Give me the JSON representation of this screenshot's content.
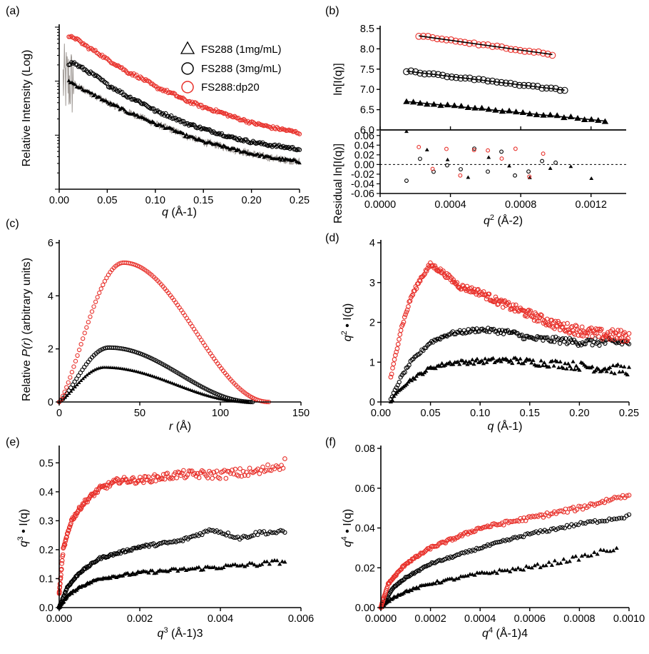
{
  "colors": {
    "red": "#e8302a",
    "black": "#000000",
    "gray": "#a09a96"
  },
  "chart_data": [
    {
      "panel": "(a)",
      "type": "scatter",
      "xlabel_var": "q",
      "xlabel_unit": "(Å-1)",
      "ylabel": "Relative Intensity (Log)",
      "xlim": [
        0,
        0.25
      ],
      "xticks": [
        "0.00",
        "0.05",
        "0.10",
        "0.15",
        "0.20",
        "0.25"
      ],
      "yscale": "log",
      "ylim": [
        0.01,
        10
      ],
      "legend": [
        "FS288 (1mg/mL)",
        "FS288 (3mg/mL)",
        "FS288:dp20"
      ],
      "legend_position": "top-right",
      "series": [
        {
          "name": "FS288 (1mg/mL)",
          "marker": "triangle",
          "color": "#000000",
          "x": [
            0.01,
            0.02,
            0.03,
            0.05,
            0.07,
            0.1,
            0.13,
            0.15,
            0.18,
            0.2,
            0.22,
            0.25
          ],
          "y": [
            1.0,
            0.78,
            0.62,
            0.4,
            0.27,
            0.16,
            0.1,
            0.075,
            0.055,
            0.045,
            0.038,
            0.032
          ]
        },
        {
          "name": "FS288 (3mg/mL)",
          "marker": "circle",
          "color": "#000000",
          "x": [
            0.01,
            0.015,
            0.02,
            0.03,
            0.05,
            0.07,
            0.1,
            0.13,
            0.15,
            0.18,
            0.2,
            0.22,
            0.25
          ],
          "y": [
            2.1,
            2.2,
            1.9,
            1.5,
            0.85,
            0.53,
            0.28,
            0.17,
            0.13,
            0.09,
            0.075,
            0.065,
            0.055
          ]
        },
        {
          "name": "FS288:dp20",
          "marker": "circle",
          "color": "#e8302a",
          "x": [
            0.01,
            0.015,
            0.02,
            0.03,
            0.05,
            0.07,
            0.1,
            0.13,
            0.15,
            0.18,
            0.2,
            0.22,
            0.25
          ],
          "y": [
            6.3,
            6.6,
            5.6,
            4.2,
            2.5,
            1.5,
            0.78,
            0.45,
            0.33,
            0.22,
            0.17,
            0.14,
            0.11
          ]
        }
      ]
    },
    {
      "panel": "(b)",
      "type": "scatter",
      "ylabel_top": "ln[I(q)]",
      "ylabel_bottom": "Residual ln[I(q)]",
      "xlabel_var": "q",
      "xlabel_exp": "2",
      "xlabel_unit": "(Å-2)",
      "xlim": [
        0,
        0.0014
      ],
      "xticks": [
        "0.0000",
        "0.0004",
        "0.0008",
        "0.0012"
      ],
      "ylim_top": [
        6.0,
        8.5
      ],
      "yticks_top": [
        "6.0",
        "6.5",
        "7.0",
        "7.5",
        "8.0",
        "8.5"
      ],
      "ylim_bottom": [
        -0.06,
        0.07
      ],
      "yticks_bottom": [
        "0.06",
        "0.04",
        "0.02",
        "0.00",
        "-0.02",
        "-0.04",
        "-0.06"
      ],
      "series": [
        {
          "name": "FS288 (1mg/mL)",
          "marker": "triangle",
          "color": "#000000",
          "fit": [
            [
              0.00015,
              6.7
            ],
            [
              0.00128,
              6.22
            ]
          ]
        },
        {
          "name": "FS288 (3mg/mL)",
          "marker": "circle",
          "color": "#000000",
          "fit": [
            [
              0.00015,
              7.45
            ],
            [
              0.00105,
              6.98
            ]
          ]
        },
        {
          "name": "FS288:dp20",
          "marker": "circle",
          "color": "#e8302a",
          "fit": [
            [
              0.00022,
              8.32
            ],
            [
              0.00098,
              7.86
            ]
          ]
        }
      ]
    },
    {
      "panel": "(c)",
      "type": "line",
      "xlabel_var": "r",
      "xlabel_unit": "(Å)",
      "ylabel_pre": "Relative ",
      "ylabel_var": "P(r)",
      "ylabel_post": " (arbitrary units)",
      "xlim": [
        0,
        150
      ],
      "xticks": [
        "0",
        "50",
        "100",
        "150"
      ],
      "ylim": [
        0,
        6
      ],
      "yticks": [
        "0",
        "2",
        "4",
        "6"
      ],
      "series": [
        {
          "name": "FS288 (1mg/mL)",
          "marker": "triangle",
          "color": "#000000",
          "peak_r": 28,
          "peak_value": 1.3,
          "dmax": 117
        },
        {
          "name": "FS288 (3mg/mL)",
          "marker": "circle",
          "color": "#000000",
          "peak_r": 31,
          "peak_value": 2.05,
          "dmax": 120
        },
        {
          "name": "FS288:dp20",
          "marker": "circle",
          "color": "#e8302a",
          "peak_r": 40,
          "peak_value": 5.25,
          "dmax": 130
        }
      ]
    },
    {
      "panel": "(d)",
      "type": "scatter",
      "xlabel_var": "q",
      "xlabel_unit": "(Å-1)",
      "ylabel_var": "q",
      "ylabel_exp": "2",
      "ylabel_post": "• I(q)",
      "xlim": [
        0,
        0.25
      ],
      "xticks": [
        "0.00",
        "0.05",
        "0.10",
        "0.15",
        "0.20",
        "0.25"
      ],
      "ylim": [
        0,
        4
      ],
      "yticks": [
        "0",
        "1",
        "2",
        "3",
        "4"
      ],
      "series": [
        {
          "name": "FS288 (1mg/mL)",
          "marker": "triangle",
          "color": "#000000",
          "x": [
            0.01,
            0.02,
            0.03,
            0.05,
            0.07,
            0.1,
            0.13,
            0.15,
            0.18,
            0.2,
            0.22,
            0.25
          ],
          "y": [
            0.0,
            0.35,
            0.55,
            0.85,
            0.98,
            1.02,
            1.05,
            1.0,
            0.95,
            0.9,
            0.85,
            0.8
          ]
        },
        {
          "name": "FS288 (3mg/mL)",
          "marker": "circle",
          "color": "#000000",
          "x": [
            0.01,
            0.02,
            0.03,
            0.05,
            0.07,
            0.1,
            0.13,
            0.15,
            0.18,
            0.2,
            0.22,
            0.25
          ],
          "y": [
            0.05,
            0.6,
            1.0,
            1.5,
            1.72,
            1.82,
            1.75,
            1.6,
            1.55,
            1.5,
            1.5,
            1.5
          ]
        },
        {
          "name": "FS288:dp20",
          "marker": "circle",
          "color": "#e8302a",
          "x": [
            0.01,
            0.015,
            0.02,
            0.03,
            0.04,
            0.05,
            0.06,
            0.08,
            0.1,
            0.12,
            0.15,
            0.18,
            0.2,
            0.22,
            0.25
          ],
          "y": [
            0.6,
            1.2,
            1.8,
            2.6,
            3.1,
            3.45,
            3.3,
            2.9,
            2.75,
            2.5,
            2.2,
            1.9,
            1.8,
            1.7,
            1.65
          ]
        }
      ]
    },
    {
      "panel": "(e)",
      "type": "scatter",
      "xlabel_var": "q",
      "xlabel_exp": "3",
      "xlabel_unit": "(Å-1)3",
      "ylabel_var": "q",
      "ylabel_exp": "3",
      "ylabel_post": "• I(q)",
      "xlim": [
        0,
        0.006
      ],
      "xticks": [
        "0.000",
        "0.002",
        "0.004",
        "0.006"
      ],
      "ylim": [
        0,
        0.55
      ],
      "yticks": [
        "0.0",
        "0.1",
        "0.2",
        "0.3",
        "0.4",
        "0.5"
      ],
      "series": [
        {
          "name": "FS288 (1mg/mL)",
          "marker": "triangle",
          "color": "#000000",
          "x": [
            0.0,
            0.0002,
            0.0005,
            0.001,
            0.002,
            0.003,
            0.004,
            0.005,
            0.0056
          ],
          "y": [
            0.0,
            0.04,
            0.07,
            0.1,
            0.12,
            0.13,
            0.14,
            0.15,
            0.16
          ]
        },
        {
          "name": "FS288 (3mg/mL)",
          "marker": "circle",
          "color": "#000000",
          "x": [
            0.0,
            0.0002,
            0.0005,
            0.001,
            0.002,
            0.003,
            0.0038,
            0.0045,
            0.005,
            0.0056
          ],
          "y": [
            0.0,
            0.07,
            0.12,
            0.17,
            0.21,
            0.23,
            0.27,
            0.24,
            0.26,
            0.26
          ]
        },
        {
          "name": "FS288:dp20",
          "marker": "circle",
          "color": "#e8302a",
          "x": [
            0.0,
            0.0001,
            0.0003,
            0.0006,
            0.001,
            0.0015,
            0.002,
            0.003,
            0.004,
            0.005,
            0.0056
          ],
          "y": [
            0.05,
            0.2,
            0.3,
            0.36,
            0.41,
            0.44,
            0.44,
            0.46,
            0.46,
            0.47,
            0.5
          ]
        }
      ]
    },
    {
      "panel": "(f)",
      "type": "scatter",
      "xlabel_var": "q",
      "xlabel_exp": "4",
      "xlabel_unit": "(Å-1)4",
      "ylabel_var": "q",
      "ylabel_exp": "4",
      "ylabel_post": "• I(q)",
      "xlim": [
        0,
        0.001
      ],
      "xticks": [
        "0.0000",
        "0.0002",
        "0.0004",
        "0.0006",
        "0.0008",
        "0.0010"
      ],
      "ylim": [
        0,
        0.08
      ],
      "yticks": [
        "0.00",
        "0.02",
        "0.04",
        "0.06",
        "0.08"
      ],
      "series": [
        {
          "name": "FS288 (1mg/mL)",
          "marker": "triangle",
          "color": "#000000",
          "x": [
            0.0,
            5e-05,
            0.0001,
            0.0002,
            0.0004,
            0.0006,
            0.0008,
            0.00095
          ],
          "y": [
            0.0,
            0.005,
            0.008,
            0.012,
            0.017,
            0.02,
            0.025,
            0.03
          ]
        },
        {
          "name": "FS288 (3mg/mL)",
          "marker": "circle",
          "color": "#000000",
          "x": [
            0.0,
            5e-05,
            0.0001,
            0.0002,
            0.0004,
            0.0006,
            0.0008,
            0.001
          ],
          "y": [
            0.0,
            0.01,
            0.015,
            0.022,
            0.03,
            0.037,
            0.042,
            0.046
          ]
        },
        {
          "name": "FS288:dp20",
          "marker": "circle",
          "color": "#e8302a",
          "x": [
            0.0,
            3e-05,
            0.0001,
            0.0002,
            0.0004,
            0.0006,
            0.0008,
            0.001
          ],
          "y": [
            0.0,
            0.012,
            0.022,
            0.03,
            0.04,
            0.045,
            0.05,
            0.057
          ]
        }
      ]
    }
  ]
}
